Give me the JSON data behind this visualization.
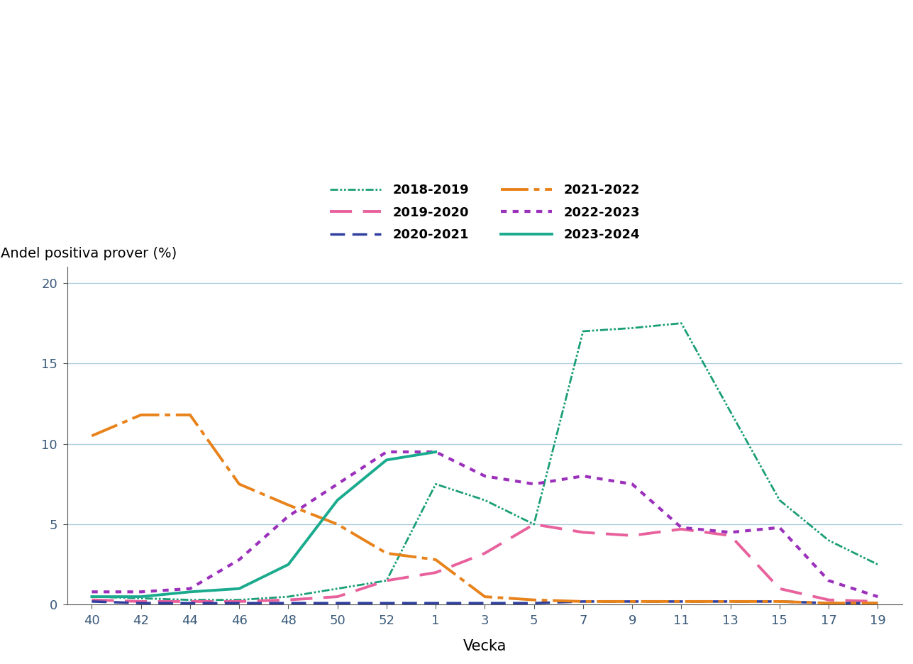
{
  "x_labels": [
    "40",
    "42",
    "44",
    "46",
    "48",
    "50",
    "52",
    "1",
    "3",
    "5",
    "7",
    "9",
    "11",
    "13",
    "15",
    "17",
    "19"
  ],
  "x_positions": [
    0,
    1,
    2,
    3,
    4,
    5,
    6,
    7,
    8,
    9,
    10,
    11,
    12,
    13,
    14,
    15,
    16
  ],
  "series_order": [
    "2018-2019",
    "2019-2020",
    "2020-2021",
    "2021-2022",
    "2022-2023",
    "2023-2024"
  ],
  "series": {
    "2018-2019": {
      "color": "#1a9e76",
      "ls_type": "dashdot_dense",
      "linewidth": 2.0,
      "values": [
        0.5,
        0.4,
        0.3,
        0.3,
        0.5,
        1.0,
        1.5,
        7.5,
        6.5,
        5.0,
        17.0,
        17.2,
        17.5,
        12.0,
        6.5,
        4.0,
        2.5
      ]
    },
    "2019-2020": {
      "color": "#e8619d",
      "ls_type": "dashed_long",
      "linewidth": 2.8,
      "values": [
        0.3,
        0.2,
        0.2,
        0.2,
        0.3,
        0.5,
        1.5,
        2.0,
        3.2,
        5.0,
        4.5,
        4.3,
        4.7,
        4.3,
        1.0,
        0.3,
        0.2
      ]
    },
    "2020-2021": {
      "color": "#2e3d9e",
      "ls_type": "dashed_med",
      "linewidth": 2.5,
      "values": [
        0.2,
        0.1,
        0.1,
        0.1,
        0.1,
        0.1,
        0.1,
        0.1,
        0.1,
        0.1,
        0.2,
        0.2,
        0.2,
        0.2,
        0.2,
        0.1,
        0.1
      ]
    },
    "2021-2022": {
      "color": "#e8821a",
      "ls_type": "dashdot_long",
      "linewidth": 2.8,
      "values": [
        10.5,
        11.8,
        11.8,
        7.5,
        6.2,
        5.0,
        3.2,
        2.8,
        0.5,
        0.3,
        0.2,
        0.2,
        0.2,
        0.2,
        0.2,
        0.1,
        0.1
      ]
    },
    "2022-2023": {
      "color": "#9B30BB",
      "ls_type": "dotted",
      "linewidth": 3.0,
      "values": [
        0.8,
        0.8,
        1.0,
        2.8,
        5.5,
        7.5,
        9.5,
        9.5,
        8.0,
        7.5,
        8.0,
        7.5,
        4.8,
        4.5,
        4.8,
        1.5,
        0.5
      ]
    },
    "2023-2024": {
      "color": "#1aab8e",
      "ls_type": "solid",
      "linewidth": 2.8,
      "values": [
        0.5,
        0.5,
        0.8,
        1.0,
        2.5,
        6.5,
        9.0,
        9.5,
        null,
        null,
        null,
        null,
        null,
        null,
        null,
        null,
        null
      ]
    }
  },
  "ylabel": "Andel positiva prover (%)",
  "xlabel": "Vecka",
  "ylim": [
    0,
    21
  ],
  "yticks": [
    0,
    5,
    10,
    15,
    20
  ],
  "background_color": "#ffffff",
  "grid_color": "#aaccdd",
  "tick_color": "#3a5a7a",
  "label_color": "#000000",
  "spine_color": "#555555",
  "fontsize_axis_label": 14,
  "fontsize_ticks": 13,
  "fontsize_legend": 13,
  "legend_order": [
    [
      "2018-2019",
      "2019-2020"
    ],
    [
      "2020-2021",
      "2021-2022"
    ],
    [
      "2022-2023",
      "2023-2024"
    ]
  ]
}
